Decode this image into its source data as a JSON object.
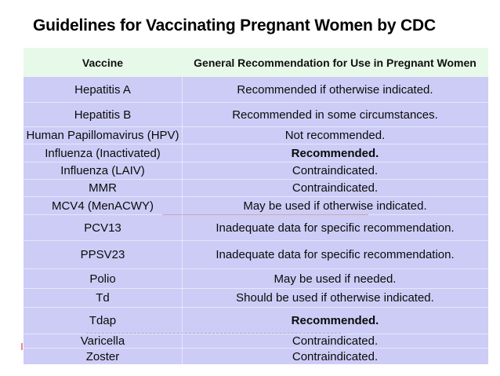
{
  "title": "Guidelines for Vaccinating Pregnant Women by CDC",
  "table": {
    "columns": [
      "Vaccine",
      "General Recommendation for Use in Pregnant Women"
    ],
    "rows": [
      {
        "vaccine": "Hepatitis A",
        "recommendation": "Recommended if otherwise indicated.",
        "bold": false
      },
      {
        "vaccine": "Hepatitis B",
        "recommendation": "Recommended in some circumstances.",
        "bold": false
      },
      {
        "vaccine": "Human Papillomavirus (HPV)",
        "recommendation": "Not recommended.",
        "bold": false
      },
      {
        "vaccine": "Influenza (Inactivated)",
        "recommendation": "Recommended.",
        "bold": true
      },
      {
        "vaccine": "Influenza (LAIV)",
        "recommendation": "Contraindicated.",
        "bold": false
      },
      {
        "vaccine": "MMR",
        "recommendation": "Contraindicated.",
        "bold": false
      },
      {
        "vaccine": "MCV4 (MenACWY)",
        "recommendation": "May be used if otherwise indicated.",
        "bold": false
      },
      {
        "vaccine": "PCV13",
        "recommendation": "Inadequate data for specific recommendation.",
        "bold": false
      },
      {
        "vaccine": "PPSV23",
        "recommendation": "Inadequate data for specific recommendation.",
        "bold": false
      },
      {
        "vaccine": "Polio",
        "recommendation": "May be used if needed.",
        "bold": false
      },
      {
        "vaccine": "Td",
        "recommendation": "Should be used if otherwise indicated.",
        "bold": false
      },
      {
        "vaccine": "Tdap",
        "recommendation": "Recommended.",
        "bold": true
      },
      {
        "vaccine": "Varicella",
        "recommendation": "Contraindicated.",
        "bold": false
      },
      {
        "vaccine": "Zoster",
        "recommendation": "Contraindicated.",
        "bold": false
      }
    ]
  },
  "colors": {
    "page_bg": "#ffffff",
    "header_bg": "#e7f9e8",
    "body_bg": "#cdccf6",
    "title_text": "#000000",
    "cell_text": "#0a0a0a",
    "row_separator": "#e4e3fb",
    "pink_line": "#d49b9b",
    "dashed_line": "#9a9ab8"
  }
}
